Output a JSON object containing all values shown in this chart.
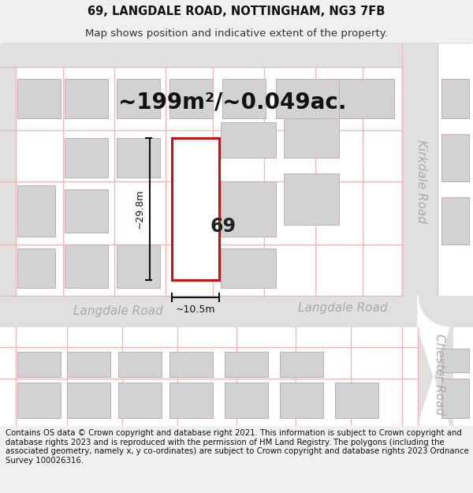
{
  "title_line1": "69, LANGDALE ROAD, NOTTINGHAM, NG3 7FB",
  "title_line2": "Map shows position and indicative extent of the property.",
  "area_text": "~199m²/~0.049ac.",
  "dim_width": "~10.5m",
  "dim_height": "~29.8m",
  "property_number": "69",
  "road_kirkdale": "Kirkdale Road",
  "road_langdale_l": "Langdale Road",
  "road_langdale_r": "Langdale Road",
  "road_chester": "Chester Road",
  "footer_lines": [
    "Contains OS data © Crown copyright and database right 2021. This information is subject to Crown copyright and database rights 2023 and is reproduced with the permission of",
    "HM Land Registry. The polygons (including the associated geometry, namely x, y co-ordinates) are subject to Crown copyright and database rights 2023 Ordnance Survey",
    "100026316."
  ],
  "bg_color": "#f0f0f0",
  "map_bg": "#ffffff",
  "road_fill": "#e0e0e0",
  "bld_fill": "#d2d2d2",
  "bld_edge": "#c0b0b0",
  "grid_pink": "#f0b8b8",
  "prop_edge": "#cc1111",
  "prop_fill": "#ffffff",
  "dim_color": "#111111",
  "road_text": "#aaaaaa",
  "title_fs": 10.5,
  "sub_fs": 9.5,
  "area_fs": 20,
  "footer_fs": 7.5,
  "road_label_fs": 11
}
